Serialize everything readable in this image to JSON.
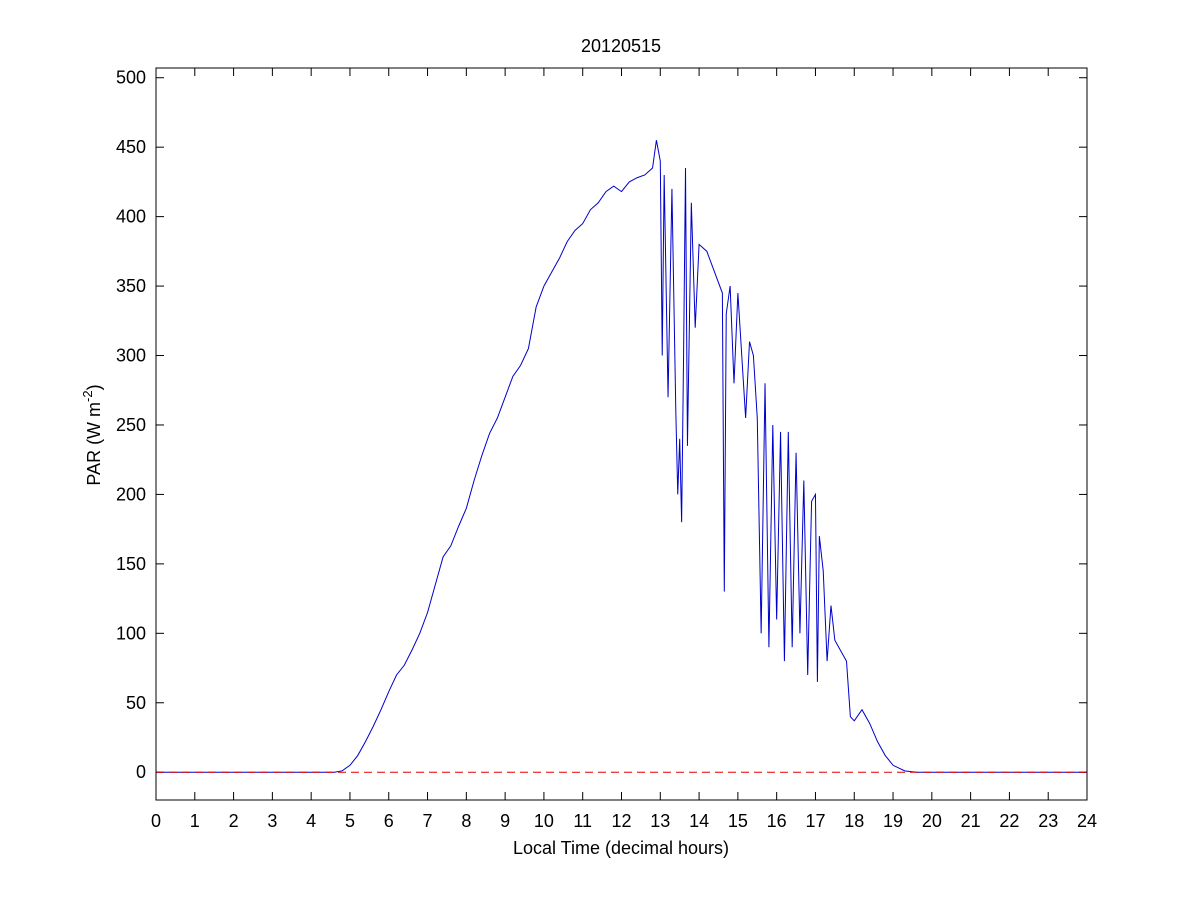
{
  "chart_data": {
    "type": "line",
    "title": "20120515",
    "xlabel": "Local Time (decimal hours)",
    "ylabel": [
      "PAR (W m",
      "-2",
      ")"
    ],
    "xlim": [
      0,
      24
    ],
    "xticks": [
      0,
      1,
      2,
      3,
      4,
      5,
      6,
      7,
      8,
      9,
      10,
      11,
      12,
      13,
      14,
      15,
      16,
      17,
      18,
      19,
      20,
      21,
      22,
      23,
      24
    ],
    "ylim": [
      -20,
      507
    ],
    "yticks": [
      0,
      50,
      100,
      150,
      200,
      250,
      300,
      350,
      400,
      450,
      500
    ],
    "hline": {
      "value": 0,
      "color": "#e00000",
      "dashed": true
    },
    "series": [
      {
        "color": "#0000cc",
        "x": [
          0,
          4.6,
          4.8,
          5.0,
          5.2,
          5.4,
          5.6,
          5.8,
          6.0,
          6.2,
          6.4,
          6.6,
          6.8,
          7.0,
          7.2,
          7.4,
          7.6,
          7.8,
          8.0,
          8.2,
          8.4,
          8.6,
          8.8,
          9.0,
          9.2,
          9.4,
          9.6,
          9.8,
          10.0,
          10.2,
          10.4,
          10.6,
          10.8,
          11.0,
          11.2,
          11.4,
          11.6,
          11.8,
          12.0,
          12.2,
          12.4,
          12.6,
          12.8,
          12.9,
          13.0,
          13.05,
          13.1,
          13.2,
          13.3,
          13.4,
          13.45,
          13.5,
          13.55,
          13.6,
          13.65,
          13.7,
          13.8,
          13.9,
          14.0,
          14.2,
          14.4,
          14.6,
          14.65,
          14.7,
          14.8,
          14.9,
          15.0,
          15.1,
          15.2,
          15.3,
          15.4,
          15.5,
          15.6,
          15.7,
          15.8,
          15.9,
          16.0,
          16.1,
          16.2,
          16.3,
          16.4,
          16.5,
          16.6,
          16.7,
          16.8,
          16.9,
          17.0,
          17.05,
          17.1,
          17.2,
          17.3,
          17.4,
          17.5,
          17.6,
          17.8,
          17.9,
          18.0,
          18.2,
          18.4,
          18.6,
          18.8,
          19.0,
          19.3,
          19.6,
          24
        ],
        "values": [
          0,
          0,
          1,
          5,
          12,
          22,
          33,
          45,
          58,
          70,
          77,
          88,
          100,
          115,
          135,
          155,
          163,
          177,
          190,
          210,
          228,
          244,
          255,
          270,
          285,
          293,
          305,
          335,
          350,
          360,
          370,
          382,
          390,
          395,
          405,
          410,
          418,
          422,
          418,
          425,
          428,
          430,
          435,
          455,
          440,
          300,
          430,
          270,
          420,
          260,
          200,
          240,
          180,
          300,
          435,
          235,
          410,
          320,
          380,
          375,
          360,
          345,
          130,
          330,
          350,
          280,
          345,
          300,
          255,
          310,
          300,
          255,
          100,
          280,
          90,
          250,
          110,
          245,
          80,
          245,
          90,
          230,
          100,
          210,
          70,
          195,
          200,
          65,
          170,
          145,
          80,
          120,
          95,
          90,
          80,
          40,
          37,
          45,
          35,
          22,
          12,
          5,
          1,
          0,
          0
        ]
      }
    ]
  }
}
